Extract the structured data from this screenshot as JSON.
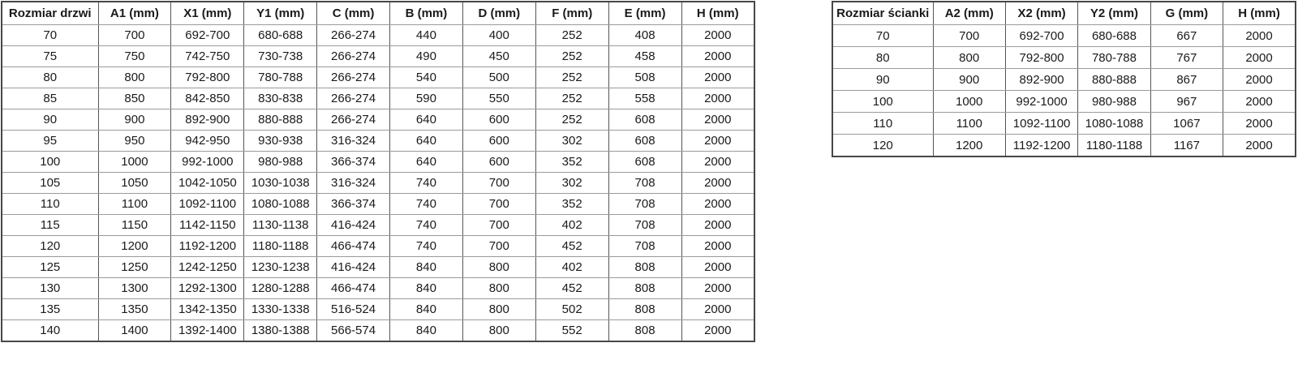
{
  "page": {
    "background_color": "#ffffff",
    "text_color": "#1a1a1a",
    "border_color": "#565656"
  },
  "doors_table": {
    "headers": [
      "Rozmiar drzwi",
      "A1 (mm)",
      "X1 (mm)",
      "Y1 (mm)",
      "C (mm)",
      "B (mm)",
      "D (mm)",
      "F (mm)",
      "E (mm)",
      "H (mm)"
    ],
    "rows": [
      [
        "70",
        "700",
        "692-700",
        "680-688",
        "266-274",
        "440",
        "400",
        "252",
        "408",
        "2000"
      ],
      [
        "75",
        "750",
        "742-750",
        "730-738",
        "266-274",
        "490",
        "450",
        "252",
        "458",
        "2000"
      ],
      [
        "80",
        "800",
        "792-800",
        "780-788",
        "266-274",
        "540",
        "500",
        "252",
        "508",
        "2000"
      ],
      [
        "85",
        "850",
        "842-850",
        "830-838",
        "266-274",
        "590",
        "550",
        "252",
        "558",
        "2000"
      ],
      [
        "90",
        "900",
        "892-900",
        "880-888",
        "266-274",
        "640",
        "600",
        "252",
        "608",
        "2000"
      ],
      [
        "95",
        "950",
        "942-950",
        "930-938",
        "316-324",
        "640",
        "600",
        "302",
        "608",
        "2000"
      ],
      [
        "100",
        "1000",
        "992-1000",
        "980-988",
        "366-374",
        "640",
        "600",
        "352",
        "608",
        "2000"
      ],
      [
        "105",
        "1050",
        "1042-1050",
        "1030-1038",
        "316-324",
        "740",
        "700",
        "302",
        "708",
        "2000"
      ],
      [
        "110",
        "1100",
        "1092-1100",
        "1080-1088",
        "366-374",
        "740",
        "700",
        "352",
        "708",
        "2000"
      ],
      [
        "115",
        "1150",
        "1142-1150",
        "1130-1138",
        "416-424",
        "740",
        "700",
        "402",
        "708",
        "2000"
      ],
      [
        "120",
        "1200",
        "1192-1200",
        "1180-1188",
        "466-474",
        "740",
        "700",
        "452",
        "708",
        "2000"
      ],
      [
        "125",
        "1250",
        "1242-1250",
        "1230-1238",
        "416-424",
        "840",
        "800",
        "402",
        "808",
        "2000"
      ],
      [
        "130",
        "1300",
        "1292-1300",
        "1280-1288",
        "466-474",
        "840",
        "800",
        "452",
        "808",
        "2000"
      ],
      [
        "135",
        "1350",
        "1342-1350",
        "1330-1338",
        "516-524",
        "840",
        "800",
        "502",
        "808",
        "2000"
      ],
      [
        "140",
        "1400",
        "1392-1400",
        "1380-1388",
        "566-574",
        "840",
        "800",
        "552",
        "808",
        "2000"
      ]
    ]
  },
  "walls_table": {
    "headers": [
      "Rozmiar ścianki",
      "A2 (mm)",
      "X2 (mm)",
      "Y2 (mm)",
      "G (mm)",
      "H (mm)"
    ],
    "rows": [
      [
        "70",
        "700",
        "692-700",
        "680-688",
        "667",
        "2000"
      ],
      [
        "80",
        "800",
        "792-800",
        "780-788",
        "767",
        "2000"
      ],
      [
        "90",
        "900",
        "892-900",
        "880-888",
        "867",
        "2000"
      ],
      [
        "100",
        "1000",
        "992-1000",
        "980-988",
        "967",
        "2000"
      ],
      [
        "110",
        "1100",
        "1092-1100",
        "1080-1088",
        "1067",
        "2000"
      ],
      [
        "120",
        "1200",
        "1192-1200",
        "1180-1188",
        "1167",
        "2000"
      ]
    ]
  }
}
